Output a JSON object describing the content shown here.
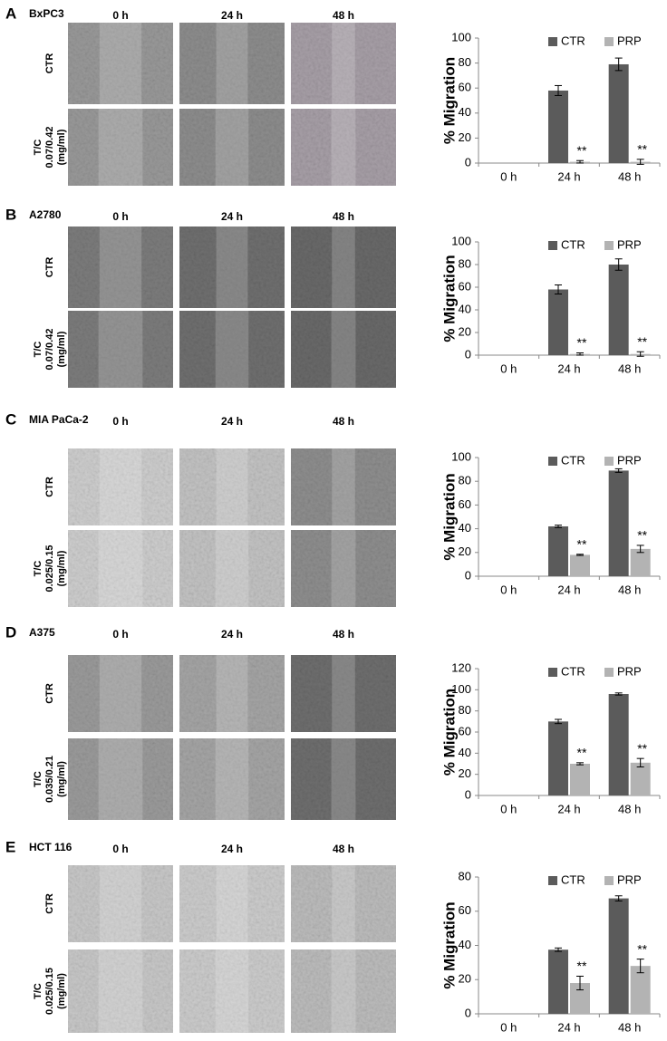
{
  "panels": [
    {
      "label": "A",
      "cell_line": "BxPC3",
      "columns": [
        "0 h",
        "24 h",
        "48 h"
      ],
      "rows": [
        [
          "CTR"
        ],
        [
          "T/C",
          "0.07/0.42",
          "(mg/ml)"
        ]
      ]
    },
    {
      "label": "B",
      "cell_line": "A2780",
      "columns": [
        "0 h",
        "24 h",
        "48 h"
      ],
      "rows": [
        [
          "CTR"
        ],
        [
          "T/C",
          "0.07/0.42",
          "(mg/ml)"
        ]
      ]
    },
    {
      "label": "C",
      "cell_line": "MIA PaCa-2",
      "columns": [
        "0 h",
        "24 h",
        "48 h"
      ],
      "rows": [
        [
          "CTR"
        ],
        [
          "T/C",
          "0.025/0.15",
          "(mg/ml)"
        ]
      ]
    },
    {
      "label": "D",
      "cell_line": "A375",
      "columns": [
        "0 h",
        "24 h",
        "48 h"
      ],
      "rows": [
        [
          "CTR"
        ],
        [
          "T/C",
          "0.035/0.21",
          "(mg/ml)"
        ]
      ]
    },
    {
      "label": "E",
      "cell_line": "HCT 116",
      "columns": [
        "0 h",
        "24 h",
        "48 h"
      ],
      "rows": [
        [
          "CTR"
        ],
        [
          "T/C",
          "0.025/0.15",
          "(mg/ml)"
        ]
      ]
    }
  ],
  "chart_data": [
    {
      "type": "bar",
      "y_label": "% Migration",
      "categories": [
        "0 h",
        "24 h",
        "48 h"
      ],
      "ylim": [
        0,
        100
      ],
      "yticks": [
        0,
        20,
        40,
        60,
        80,
        100
      ],
      "series": [
        {
          "name": "CTR",
          "color": "#5b5b5b",
          "values": [
            0,
            58,
            79
          ],
          "errors": [
            null,
            4,
            5
          ]
        },
        {
          "name": "PRP",
          "color": "#b3b3b3",
          "values": [
            0,
            1,
            1
          ],
          "errors": [
            null,
            1,
            2
          ],
          "markers": [
            null,
            "**",
            "**"
          ]
        }
      ]
    },
    {
      "type": "bar",
      "y_label": "% Migration",
      "categories": [
        "0 h",
        "24 h",
        "48 h"
      ],
      "ylim": [
        0,
        100
      ],
      "yticks": [
        0,
        20,
        40,
        60,
        80,
        100
      ],
      "series": [
        {
          "name": "CTR",
          "color": "#5b5b5b",
          "values": [
            0,
            58,
            80
          ],
          "errors": [
            null,
            4,
            5
          ]
        },
        {
          "name": "PRP",
          "color": "#b3b3b3",
          "values": [
            0,
            1,
            1
          ],
          "errors": [
            null,
            1,
            2
          ],
          "markers": [
            null,
            "**",
            "**"
          ]
        }
      ]
    },
    {
      "type": "bar",
      "y_label": "% Migration",
      "categories": [
        "0 h",
        "24 h",
        "48 h"
      ],
      "ylim": [
        0,
        100
      ],
      "yticks": [
        0,
        20,
        40,
        60,
        80,
        100
      ],
      "series": [
        {
          "name": "CTR",
          "color": "#5b5b5b",
          "values": [
            0,
            42,
            89
          ],
          "errors": [
            null,
            1,
            1.5
          ]
        },
        {
          "name": "PRP",
          "color": "#b3b3b3",
          "values": [
            0,
            18,
            23
          ],
          "errors": [
            null,
            0.5,
            3
          ],
          "markers": [
            null,
            "**",
            "**"
          ]
        }
      ]
    },
    {
      "type": "bar",
      "y_label": "% Migration",
      "categories": [
        "0 h",
        "24 h",
        "48 h"
      ],
      "ylim": [
        0,
        120
      ],
      "yticks": [
        0,
        20,
        40,
        60,
        80,
        100,
        120
      ],
      "series": [
        {
          "name": "CTR",
          "color": "#5b5b5b",
          "values": [
            0,
            70,
            96
          ],
          "errors": [
            null,
            2,
            1
          ]
        },
        {
          "name": "PRP",
          "color": "#b3b3b3",
          "values": [
            0,
            30,
            31
          ],
          "errors": [
            null,
            1,
            4
          ],
          "markers": [
            null,
            "**",
            "**"
          ]
        }
      ]
    },
    {
      "type": "bar",
      "y_label": "% Migration",
      "categories": [
        "0 h",
        "24 h",
        "48 h"
      ],
      "ylim": [
        0,
        80
      ],
      "yticks": [
        0,
        20,
        40,
        60,
        80
      ],
      "series": [
        {
          "name": "CTR",
          "color": "#5b5b5b",
          "values": [
            0,
            37.5,
            67.5
          ],
          "errors": [
            null,
            1,
            1.5
          ]
        },
        {
          "name": "PRP",
          "color": "#b3b3b3",
          "values": [
            0,
            18,
            28
          ],
          "errors": [
            null,
            4,
            4
          ],
          "markers": [
            null,
            "**",
            "**"
          ]
        }
      ]
    }
  ]
}
